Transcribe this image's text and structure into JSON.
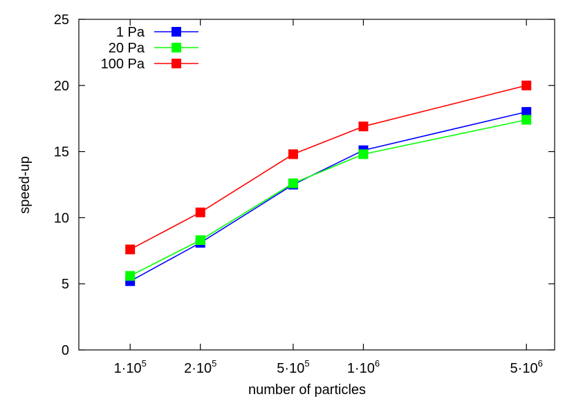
{
  "chart_data": {
    "type": "line",
    "title": "",
    "xlabel": "number of particles",
    "ylabel": "speed-up",
    "x_scale": "log",
    "x": [
      100000,
      200000,
      500000,
      1000000,
      5000000
    ],
    "x_tick_labels": [
      {
        "base": "1·10",
        "exp": "5"
      },
      {
        "base": "2·10",
        "exp": "5"
      },
      {
        "base": "5·10",
        "exp": "5"
      },
      {
        "base": "1·10",
        "exp": "6"
      },
      {
        "base": "5·10",
        "exp": "6"
      }
    ],
    "ylim": [
      0,
      25
    ],
    "y_ticks": [
      0,
      5,
      10,
      15,
      20,
      25
    ],
    "grid": false,
    "legend_position": "top-left",
    "series": [
      {
        "name": "1 Pa",
        "color": "#0000ff",
        "marker": "square",
        "values": [
          5.2,
          8.1,
          12.5,
          15.1,
          18.0
        ]
      },
      {
        "name": "20 Pa",
        "color": "#00ff00",
        "marker": "square",
        "values": [
          5.6,
          8.3,
          12.6,
          14.8,
          17.4
        ]
      },
      {
        "name": "100 Pa",
        "color": "#ff0000",
        "marker": "square",
        "values": [
          7.6,
          10.4,
          14.8,
          16.9,
          20.0
        ]
      }
    ]
  }
}
